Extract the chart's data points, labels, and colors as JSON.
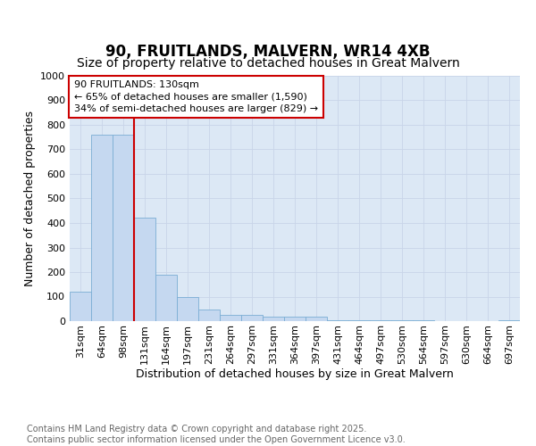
{
  "title1": "90, FRUITLANDS, MALVERN, WR14 4XB",
  "title2": "Size of property relative to detached houses in Great Malvern",
  "xlabel": "Distribution of detached houses by size in Great Malvern",
  "ylabel": "Number of detached properties",
  "categories": [
    "31sqm",
    "64sqm",
    "98sqm",
    "131sqm",
    "164sqm",
    "197sqm",
    "231sqm",
    "264sqm",
    "297sqm",
    "331sqm",
    "364sqm",
    "397sqm",
    "431sqm",
    "464sqm",
    "497sqm",
    "530sqm",
    "564sqm",
    "597sqm",
    "630sqm",
    "664sqm",
    "697sqm"
  ],
  "values": [
    120,
    760,
    760,
    420,
    190,
    100,
    47,
    25,
    25,
    20,
    18,
    20,
    5,
    5,
    3,
    2,
    2,
    1,
    1,
    1,
    5
  ],
  "bar_color": "#c5d8f0",
  "bar_edge_color": "#7aadd4",
  "vline_x": 2.5,
  "vline_color": "#cc0000",
  "annotation_text": "90 FRUITLANDS: 130sqm\n← 65% of detached houses are smaller (1,590)\n34% of semi-detached houses are larger (829) →",
  "annotation_box_facecolor": "#ffffff",
  "annotation_box_edgecolor": "#cc0000",
  "ylim": [
    0,
    1000
  ],
  "yticks": [
    0,
    100,
    200,
    300,
    400,
    500,
    600,
    700,
    800,
    900,
    1000
  ],
  "grid_color": "#c8d4e8",
  "plot_bg_color": "#dce8f5",
  "fig_bg_color": "#ffffff",
  "title1_fontsize": 12,
  "title2_fontsize": 10,
  "axis_label_fontsize": 9,
  "tick_fontsize": 8,
  "annotation_fontsize": 8,
  "footer_fontsize": 7,
  "footer_text": "Contains HM Land Registry data © Crown copyright and database right 2025.\nContains public sector information licensed under the Open Government Licence v3.0.",
  "footer_color": "#666666"
}
